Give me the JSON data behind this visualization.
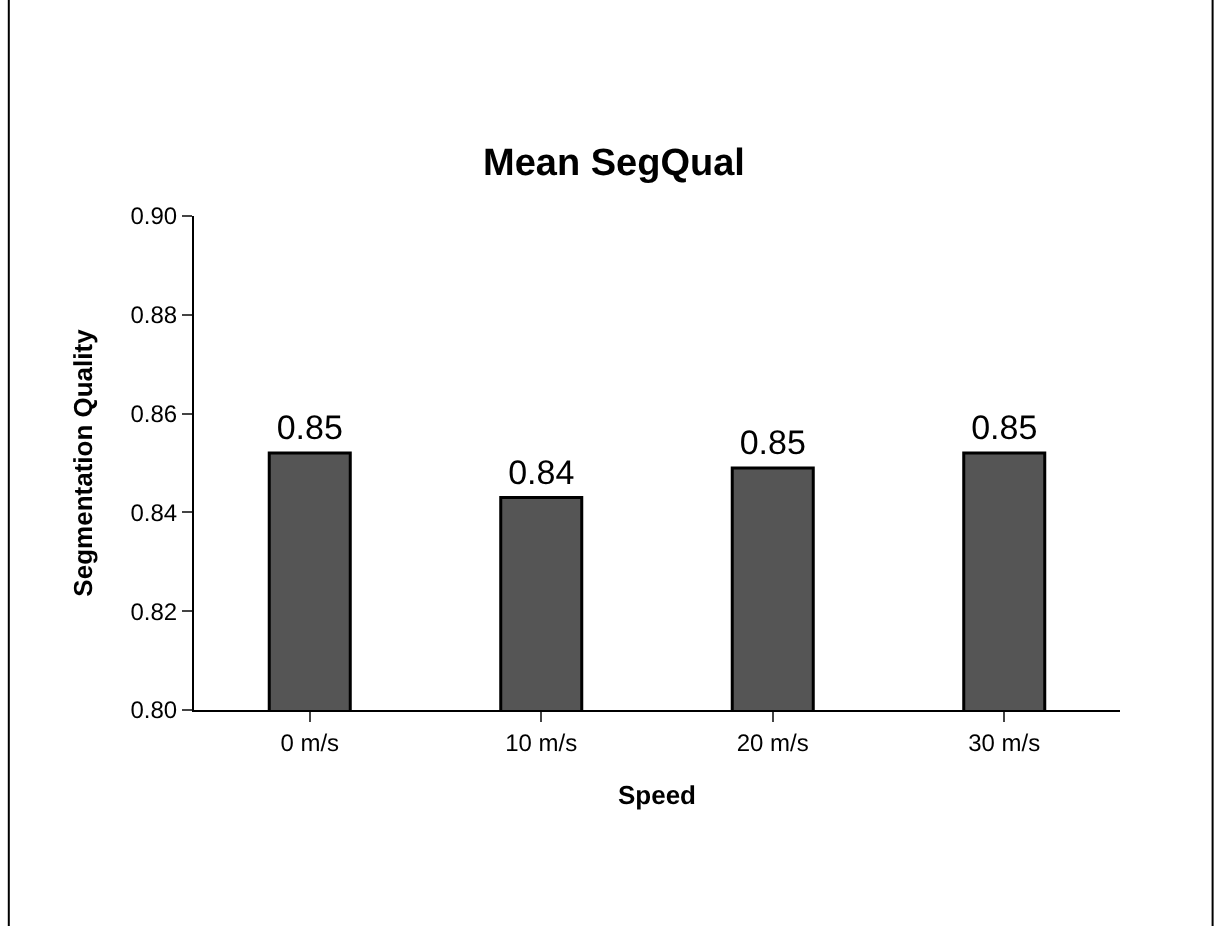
{
  "chart_data": {
    "type": "bar",
    "title": "Mean SegQual",
    "xlabel": "Speed",
    "ylabel": "Segmentation Quality",
    "categories": [
      "0 m/s",
      "10 m/s",
      "20 m/s",
      "30 m/s"
    ],
    "values": [
      0.852,
      0.843,
      0.849,
      0.852
    ],
    "value_labels": [
      "0.85",
      "0.84",
      "0.85",
      "0.85"
    ],
    "color": "#555555",
    "ylim": [
      0.8,
      0.9
    ],
    "yticks": [
      "0.80",
      "0.82",
      "0.84",
      "0.86",
      "0.88",
      "0.90"
    ],
    "legend": false
  }
}
